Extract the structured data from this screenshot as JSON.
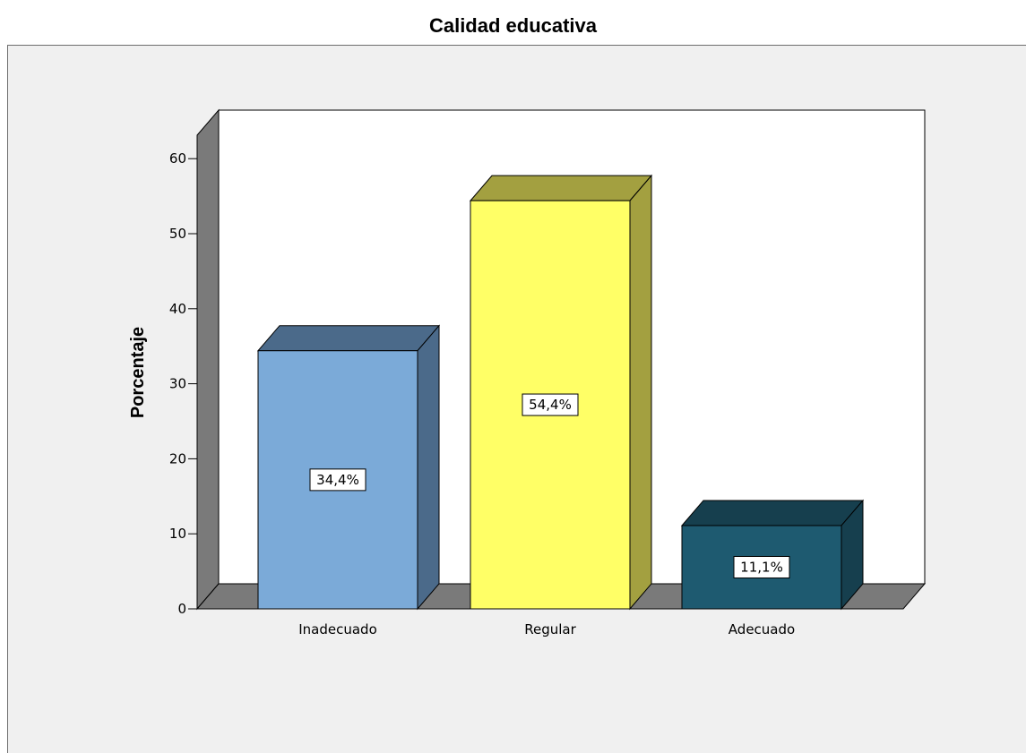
{
  "chart_data": {
    "type": "bar",
    "title": "Calidad educativa",
    "xlabel": "",
    "ylabel": "Porcentaje",
    "categories": [
      "Inadecuado",
      "Regular",
      "Adecuado"
    ],
    "values": [
      34.4,
      54.4,
      11.1
    ],
    "value_labels": [
      "34,4%",
      "54,4%",
      "11,1%"
    ],
    "ylim": [
      0,
      65
    ],
    "yticks": [
      0,
      10,
      20,
      30,
      40,
      50,
      60
    ],
    "grid": false,
    "style": "3d",
    "colors": {
      "bars": [
        {
          "front": "#7baad8",
          "top": "#4b6a8a",
          "side": "#4b6a8a"
        },
        {
          "front": "#ffff66",
          "top": "#a3a040",
          "side": "#a3a040"
        },
        {
          "front": "#1e5a70",
          "top": "#163f4e",
          "side": "#163f4e"
        }
      ],
      "wall": "#ffffff",
      "wall_side": "#7a7a7a",
      "floor": "#7a7a7a",
      "background": "#f0f0f0"
    }
  }
}
